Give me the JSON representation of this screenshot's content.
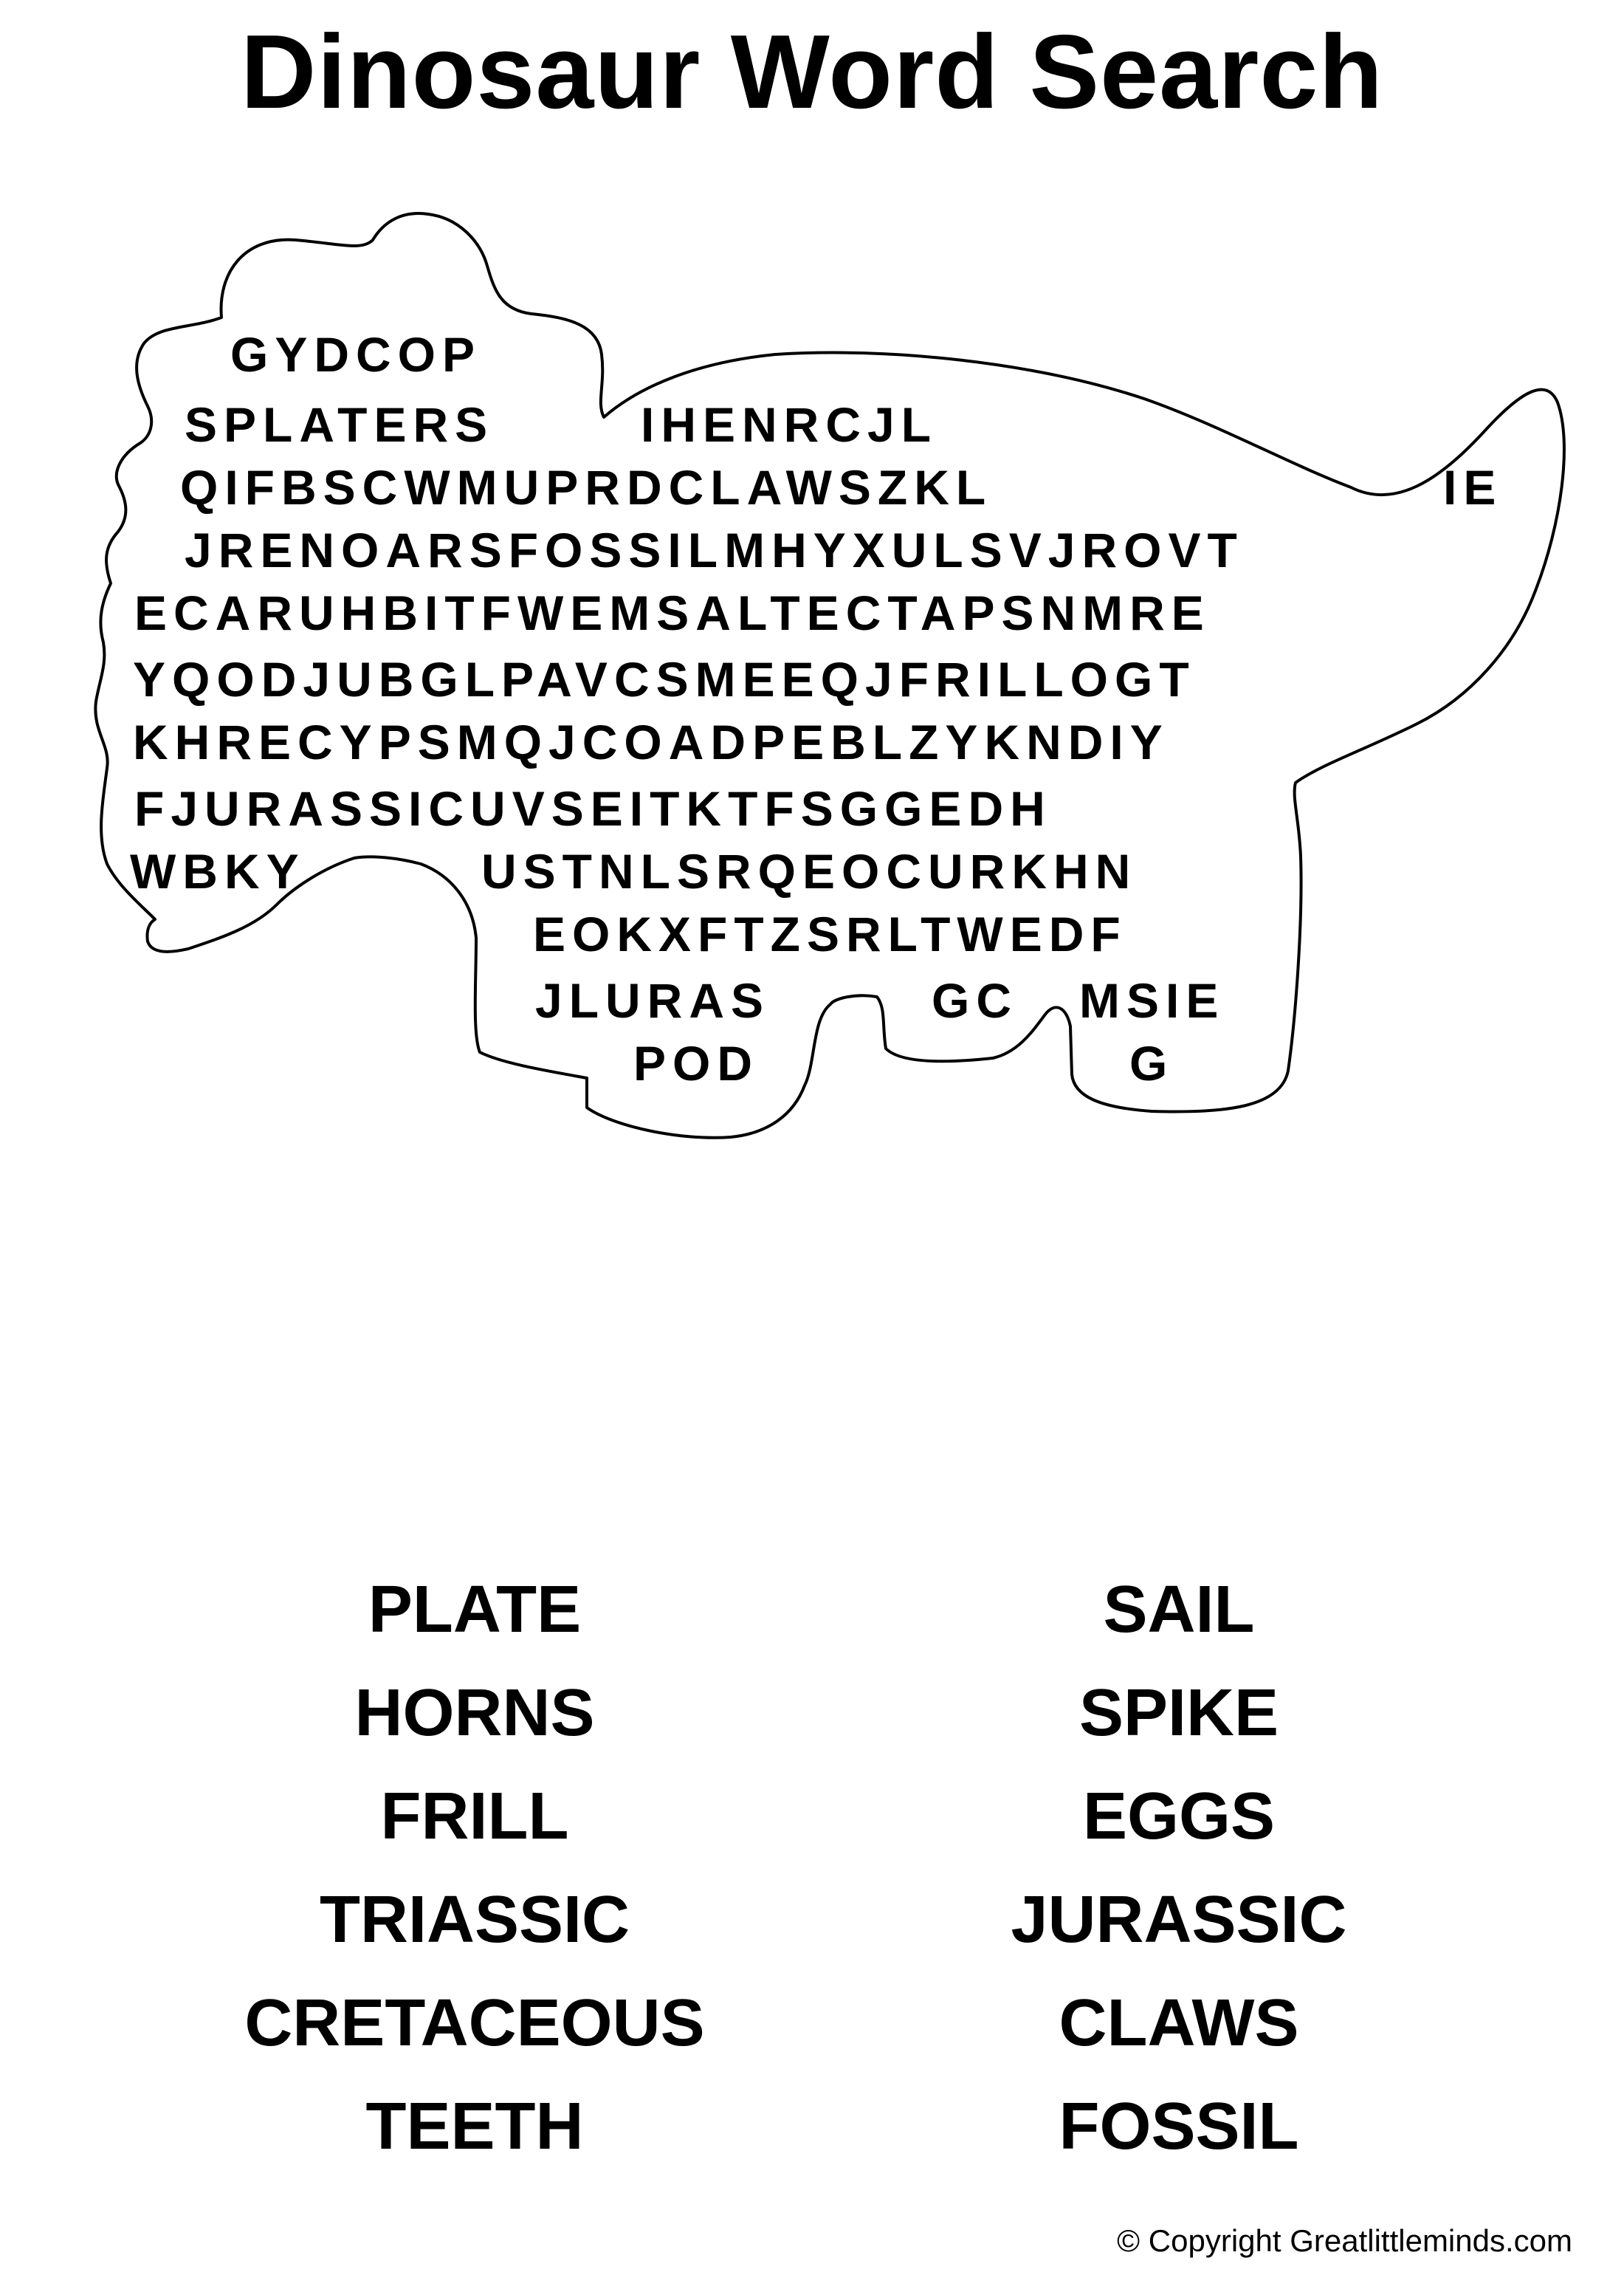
{
  "title": "Dinosaur Word Search",
  "grid_rows": [
    "GYDCOP",
    "SPLATERS",
    "IHENRCJL",
    "QIFBSCWMUPRDCLAWSZKL",
    "IE",
    "JRENOARSFOSSILMHYXULSVJROVT",
    "ECARUHBITFWEMSALTECTAPSNMRE",
    "YQODJUBGLPAVCSMEEQJFRILLOGT",
    "KHRECYPSMQJCOADPEBLZYKNDIY",
    "FJURASSICUVSEITKTFSGGEDH",
    "WBKY",
    "USTNLSRQEOCURKHN",
    "EOKXFTZSRLTWEDF",
    "JLURAS",
    "GC",
    "MSIE",
    "POD",
    "G"
  ],
  "words_left": [
    "PLATE",
    "HORNS",
    "FRILL",
    "TRIASSIC",
    "CRETACEOUS",
    "TEETH"
  ],
  "words_right": [
    "SAIL",
    "SPIKE",
    "EGGS",
    "JURASSIC",
    "CLAWS",
    "FOSSIL"
  ],
  "copyright": "© Copyright Greatlittleminds.com"
}
